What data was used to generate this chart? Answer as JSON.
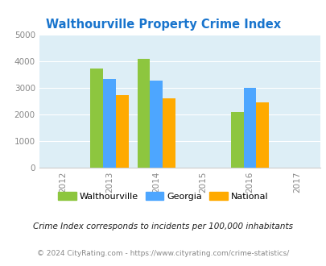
{
  "title": "Walthourville Property Crime Index",
  "title_color": "#1874cd",
  "years": [
    2013,
    2014,
    2016
  ],
  "walthourville": [
    3720,
    4080,
    2080
  ],
  "georgia": [
    3340,
    3270,
    3000
  ],
  "national": [
    2730,
    2610,
    2460
  ],
  "color_walthourville": "#8dc63f",
  "color_georgia": "#4da6ff",
  "color_national": "#ffaa00",
  "bg_color": "#ddeef6",
  "ylim": [
    0,
    5000
  ],
  "yticks": [
    0,
    1000,
    2000,
    3000,
    4000,
    5000
  ],
  "xticks": [
    2012,
    2013,
    2014,
    2015,
    2016,
    2017
  ],
  "legend_labels": [
    "Walthourville",
    "Georgia",
    "National"
  ],
  "footnote1": "Crime Index corresponds to incidents per 100,000 inhabitants",
  "footnote2": "© 2024 CityRating.com - https://www.cityrating.com/crime-statistics/",
  "bar_width": 0.27
}
